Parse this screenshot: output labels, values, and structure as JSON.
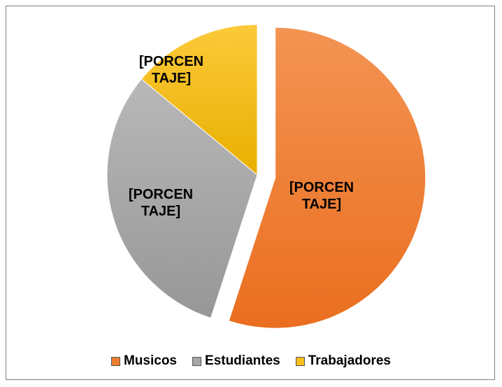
{
  "chart_data": {
    "type": "pie",
    "categories": [
      "Musicos",
      "Estudiantes",
      "Trabajadores"
    ],
    "values": [
      55,
      31,
      14
    ],
    "value_labels": [
      "[PORCENTAJE]",
      "[PORCENTAJE]",
      "[PORCENTAJE]"
    ],
    "colors": [
      "#ef7d2e",
      "#a5a5a5",
      "#f5be1a"
    ],
    "legend": "bottom"
  }
}
